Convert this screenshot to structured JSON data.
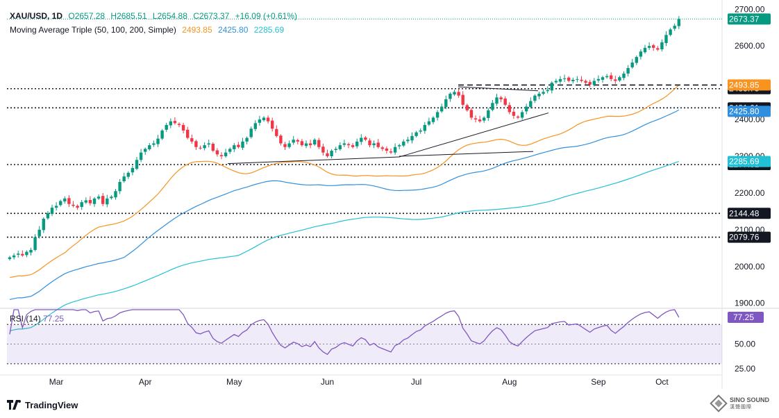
{
  "header": {
    "symbol": "XAU/USD, 1D",
    "open": "O2657.28",
    "high": "H2685.51",
    "low": "L2654.88",
    "close": "C2673.37",
    "change": "+16.09 (+0.61%)",
    "ma_title": "Moving Average Triple (50, 100, 200, Simple)",
    "ma50_value": "2493.85",
    "ma100_value": "2425.80",
    "ma200_value": "2285.69"
  },
  "rsi_panel": {
    "label": "RSI (14)",
    "value": "77.25"
  },
  "branding": {
    "tradingview": "TradingView",
    "watermark": "SINO SOUND",
    "watermark_cn": "漢聲國際"
  },
  "colors": {
    "up": "#089981",
    "down": "#f23645",
    "ma50": "#f7931e",
    "ma100": "#2f8fde",
    "ma200": "#22c0d4",
    "rsi": "#7e57c2",
    "price_tag": "#089981"
  },
  "chart_data": [
    {
      "type": "candlestick",
      "title": "",
      "ylim": [
        1890,
        2710
      ],
      "ytick_labels": [
        "1900.00",
        "2000.00",
        "2100.00",
        "2200.00",
        "2300.00",
        "2400.00",
        "2500.00",
        "2600.00",
        "2700.00"
      ],
      "yticks": [
        1900,
        2000,
        2100,
        2200,
        2300,
        2400,
        2500,
        2600,
        2700
      ],
      "x_labels": [
        "Mar",
        "Apr",
        "May",
        "Jun",
        "Jul",
        "Aug",
        "Sep",
        "Oct"
      ],
      "x_label_bars": [
        11,
        32,
        53,
        75,
        96,
        118,
        139,
        154
      ],
      "close_series": [
        2025,
        2030,
        2035,
        2030,
        2040,
        2045,
        2080,
        2100,
        2130,
        2145,
        2160,
        2165,
        2178,
        2185,
        2170,
        2165,
        2160,
        2175,
        2180,
        2172,
        2185,
        2190,
        2170,
        2185,
        2190,
        2205,
        2230,
        2245,
        2255,
        2268,
        2290,
        2310,
        2320,
        2330,
        2335,
        2348,
        2370,
        2385,
        2395,
        2390,
        2385,
        2370,
        2350,
        2340,
        2325,
        2322,
        2330,
        2335,
        2315,
        2305,
        2300,
        2310,
        2320,
        2330,
        2325,
        2340,
        2350,
        2375,
        2390,
        2400,
        2405,
        2395,
        2375,
        2355,
        2335,
        2325,
        2335,
        2345,
        2340,
        2330,
        2335,
        2330,
        2345,
        2325,
        2310,
        2300,
        2315,
        2320,
        2330,
        2335,
        2330,
        2325,
        2340,
        2350,
        2345,
        2330,
        2335,
        2325,
        2320,
        2315,
        2310,
        2325,
        2330,
        2340,
        2345,
        2355,
        2365,
        2370,
        2385,
        2395,
        2405,
        2420,
        2435,
        2455,
        2470,
        2475,
        2465,
        2440,
        2425,
        2405,
        2400,
        2395,
        2405,
        2425,
        2445,
        2460,
        2455,
        2440,
        2420,
        2410,
        2405,
        2420,
        2435,
        2450,
        2465,
        2470,
        2475,
        2480,
        2500,
        2505,
        2510,
        2512,
        2505,
        2508,
        2510,
        2505,
        2500,
        2495,
        2505,
        2510,
        2515,
        2518,
        2510,
        2505,
        2515,
        2525,
        2540,
        2555,
        2570,
        2585,
        2595,
        2600,
        2595,
        2590,
        2610,
        2630,
        2645,
        2655,
        2673.37
      ],
      "horizontal_levels": [
        2483.75,
        2431.61,
        2277.31,
        2144.48,
        2079.76
      ],
      "level_labels": [
        "2483.75",
        "2431.61",
        "2277.31",
        "2144.48",
        "2079.76"
      ],
      "last_price": 2673.37,
      "last_price_label": "2673.37",
      "series": [
        {
          "name": "MA 50",
          "value_label": "2493.85",
          "last": 2493.85
        },
        {
          "name": "MA 100",
          "value_label": "2425.80",
          "last": 2425.8
        },
        {
          "name": "MA 200",
          "value_label": "2285.69",
          "last": 2285.69
        }
      ]
    },
    {
      "type": "line",
      "title": "RSI (14)",
      "ylim": [
        20,
        85
      ],
      "ytick_labels": [
        "25.00",
        "50.00"
      ],
      "yticks": [
        25,
        50
      ],
      "band": [
        30,
        70
      ],
      "last": 77.25,
      "last_label": "77.25"
    }
  ]
}
